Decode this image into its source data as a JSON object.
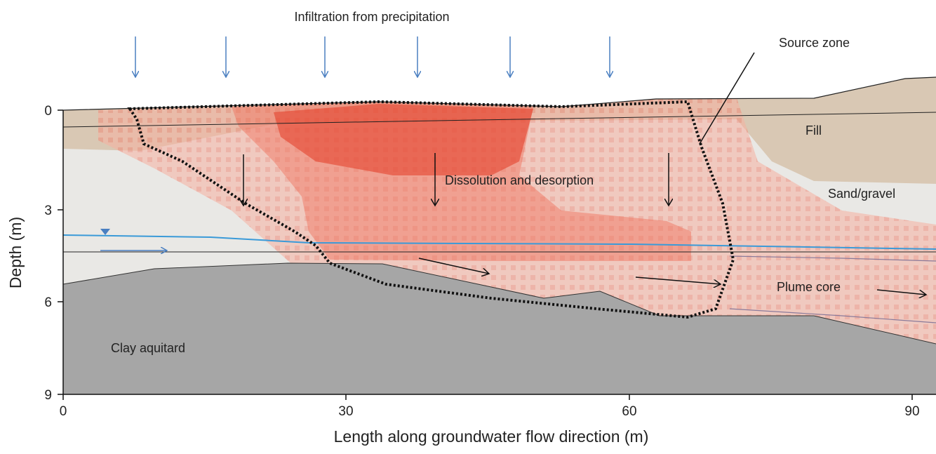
{
  "title": "Infiltration from precipitation",
  "axes": {
    "x_label": "Length along groundwater flow direction (m)",
    "y_label": "Depth (m)",
    "x_ticks": [
      0,
      30,
      60,
      90
    ],
    "y_ticks": [
      0,
      3,
      6,
      9
    ]
  },
  "labels": {
    "source_zone": "Source zone",
    "fill": "Fill",
    "sand_gravel": "Sand/gravel",
    "dissolution": "Dissolution and desorption",
    "plume_core": "Plume core",
    "clay": "Clay aquitard"
  }
}
